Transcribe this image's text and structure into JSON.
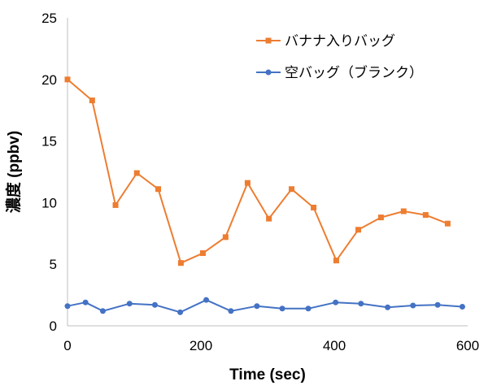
{
  "chart_data": {
    "type": "line",
    "title": "",
    "xlabel": "Time (sec)",
    "ylabel": "濃度 (ppbv)",
    "xlim": [
      0,
      600
    ],
    "ylim": [
      0,
      25
    ],
    "xticks": [
      0,
      200,
      400,
      600
    ],
    "yticks": [
      0,
      5,
      10,
      15,
      20,
      25
    ],
    "xtick_labels": [
      "0",
      "200",
      "400",
      "600"
    ],
    "ytick_labels": [
      "0",
      "5",
      "10",
      "15",
      "20",
      "25"
    ],
    "grid": false,
    "legend_position": "top-right",
    "series": [
      {
        "name": "バナナ入りバッグ",
        "color": "#ED7D31",
        "marker": "square",
        "x": [
          0,
          37,
          72,
          104,
          136,
          170,
          203,
          237,
          270,
          302,
          336,
          369,
          403,
          436,
          470,
          504,
          537,
          570
        ],
        "y": [
          20.0,
          18.3,
          9.8,
          12.4,
          11.1,
          5.1,
          5.9,
          7.2,
          11.6,
          8.7,
          11.1,
          9.6,
          5.3,
          7.8,
          8.8,
          9.3,
          9.0,
          8.3
        ]
      },
      {
        "name": "空バッグ（ブランク）",
        "color": "#4472C4",
        "marker": "circle",
        "x": [
          0,
          27,
          53,
          93,
          131,
          169,
          208,
          245,
          284,
          322,
          361,
          402,
          440,
          480,
          518,
          555,
          592
        ],
        "y": [
          1.6,
          1.9,
          1.2,
          1.8,
          1.7,
          1.1,
          2.1,
          1.2,
          1.6,
          1.4,
          1.4,
          1.9,
          1.8,
          1.5,
          1.65,
          1.7,
          1.55
        ]
      }
    ]
  }
}
